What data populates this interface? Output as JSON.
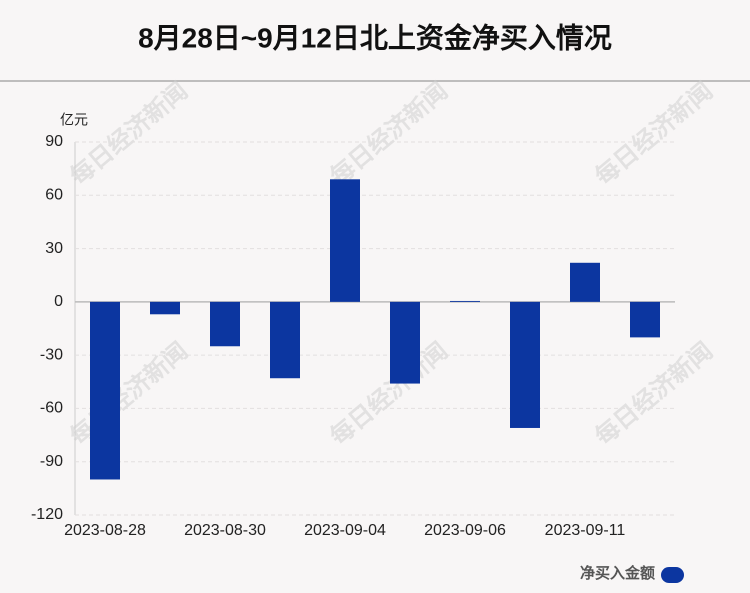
{
  "chart_data": {
    "type": "bar",
    "title": "8月28日~9月12日北上资金净买入情况",
    "y_unit": "亿元",
    "watermark": "每日经济新闻",
    "categories": [
      "2023-08-28",
      null,
      "2023-08-30",
      null,
      "2023-09-04",
      null,
      "2023-09-06",
      null,
      "2023-09-11",
      null
    ],
    "series": [
      {
        "name": "净买入金额",
        "color": "#0c36a0",
        "values": [
          -100,
          -7,
          -25,
          -43,
          69,
          -46,
          0.5,
          -71,
          22,
          -20
        ]
      }
    ],
    "ylim": [
      -120,
      90
    ],
    "yticks": [
      -120,
      -90,
      -60,
      -30,
      0,
      30,
      60,
      90
    ],
    "grid": true,
    "legend": "bottom-right"
  }
}
